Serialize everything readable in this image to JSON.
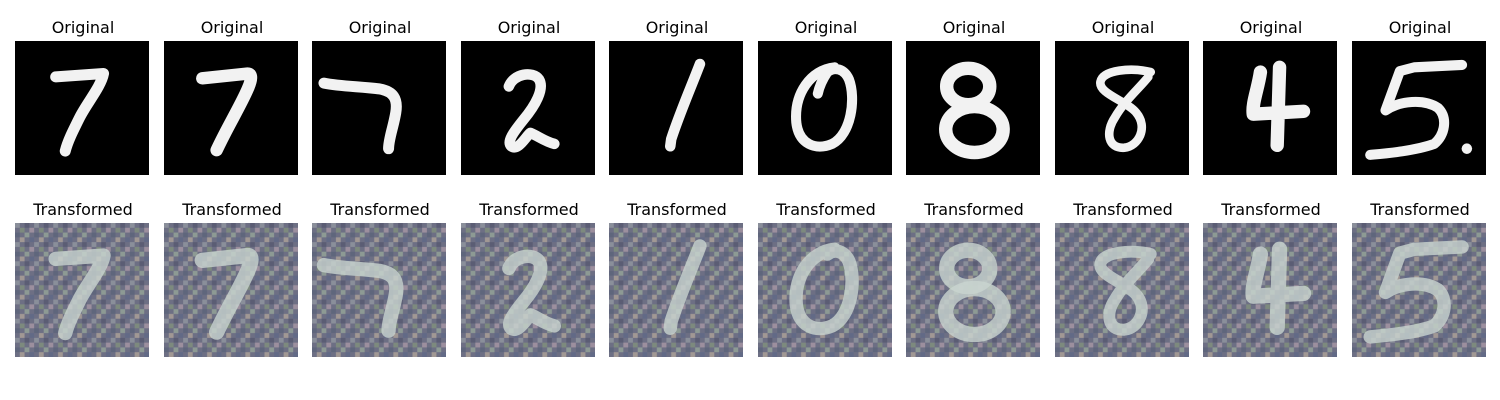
{
  "rows": {
    "original": {
      "caption": "Original",
      "digits": [
        "7",
        "7",
        "7",
        "2",
        "1",
        "0",
        "8",
        "8",
        "4",
        "5"
      ]
    },
    "transformed": {
      "caption": "Transformed",
      "digits": [
        "7",
        "7",
        "7",
        "2",
        "1",
        "0",
        "8",
        "8",
        "4",
        "5"
      ]
    }
  },
  "colors": {
    "original_background": "#000000",
    "original_stroke": "#f2f2f2",
    "transformed_background": "#6f6f82",
    "transformed_stroke": "#c9d4d0"
  }
}
